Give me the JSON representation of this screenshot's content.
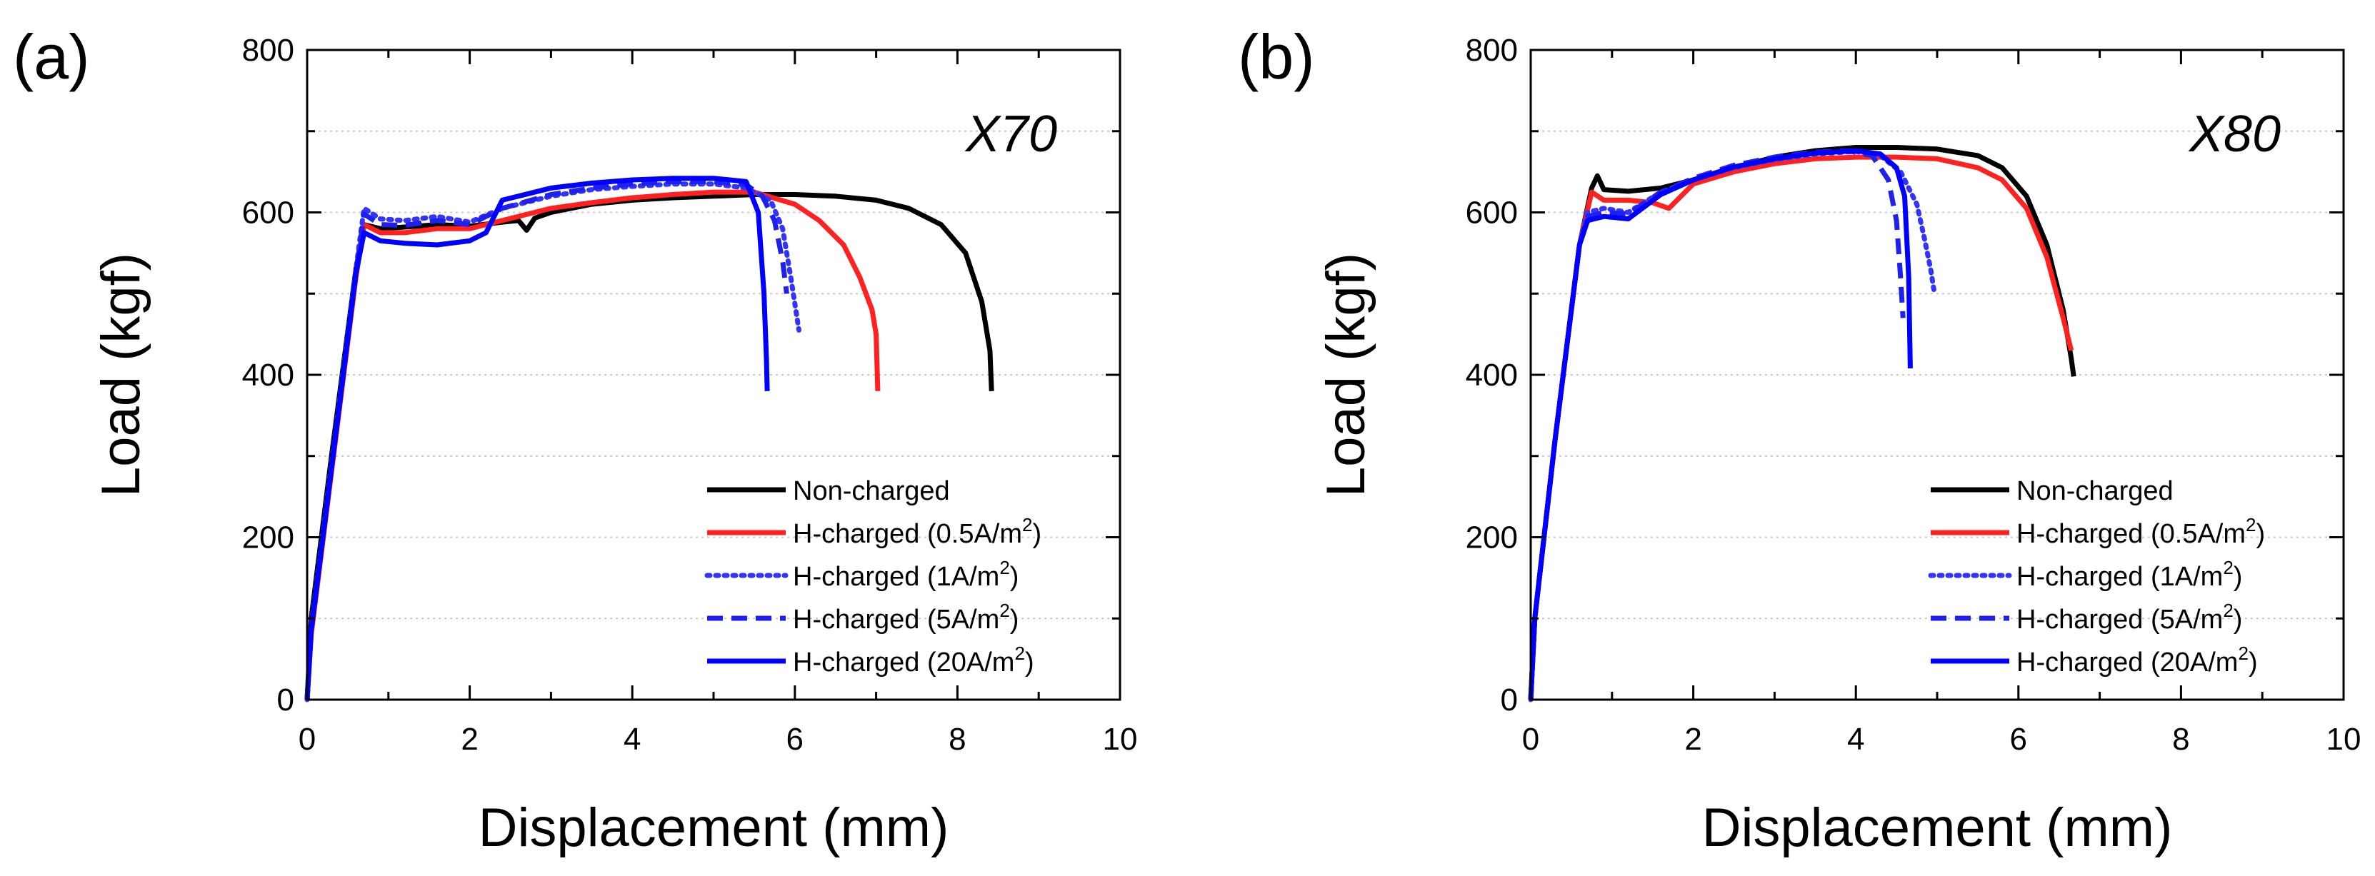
{
  "figure": {
    "background": "#ffffff",
    "axis_color": "#000000",
    "grid_color": "#c8c8c8"
  },
  "chart_data": [
    {
      "type": "line",
      "panel_label": "(a)",
      "title": "X70",
      "xlabel": "Displacement (mm)",
      "ylabel": "Load (kgf)",
      "xlim": [
        0,
        10
      ],
      "ylim": [
        0,
        800
      ],
      "xticks": [
        0,
        2,
        4,
        6,
        8,
        10
      ],
      "yticks": [
        0,
        200,
        400,
        600,
        800
      ],
      "grid": "horizontal dashed",
      "legend_position": "bottom-right",
      "series": [
        {
          "name": "Non-charged",
          "legend_text": "Non-charged",
          "sup": "",
          "legend_tail": "",
          "color": "#000000",
          "dash": "solid",
          "x": [
            0,
            0.05,
            0.3,
            0.6,
            0.7,
            0.9,
            1.2,
            1.6,
            2.0,
            2.4,
            2.6,
            2.7,
            2.8,
            3.0,
            3.5,
            4.0,
            4.5,
            5.0,
            5.5,
            6.0,
            6.5,
            7.0,
            7.4,
            7.8,
            8.1,
            8.3,
            8.4,
            8.42
          ],
          "y": [
            0,
            100,
            300,
            530,
            585,
            580,
            582,
            585,
            583,
            588,
            590,
            578,
            593,
            600,
            610,
            615,
            618,
            620,
            622,
            622,
            620,
            615,
            605,
            585,
            550,
            490,
            430,
            380
          ]
        },
        {
          "name": "H-charged (0.5A/m2)",
          "legend_text": "H-charged (0.5A/m",
          "sup": "2",
          "legend_tail": ")",
          "color": "#ff2020",
          "dash": "solid",
          "x": [
            0,
            0.05,
            0.3,
            0.6,
            0.7,
            0.9,
            1.2,
            1.6,
            2.0,
            2.4,
            3.0,
            3.5,
            4.0,
            4.5,
            5.0,
            5.5,
            6.0,
            6.3,
            6.6,
            6.8,
            6.95,
            7.0,
            7.02
          ],
          "y": [
            0,
            80,
            280,
            520,
            585,
            575,
            575,
            580,
            580,
            590,
            605,
            612,
            618,
            622,
            625,
            625,
            610,
            590,
            560,
            520,
            480,
            450,
            380
          ]
        },
        {
          "name": "H-charged (1A/m2)",
          "legend_text": "H-charged (1A/m",
          "sup": "2",
          "legend_tail": ")",
          "color": "#3333ff",
          "dash": "dotted",
          "x": [
            0,
            0.05,
            0.3,
            0.6,
            0.7,
            0.9,
            1.2,
            1.6,
            2.0,
            2.4,
            3.0,
            3.5,
            4.0,
            4.5,
            5.0,
            5.4,
            5.7,
            5.85,
            5.95,
            6.05
          ],
          "y": [
            0,
            90,
            290,
            530,
            605,
            592,
            590,
            595,
            588,
            605,
            620,
            628,
            632,
            635,
            635,
            630,
            615,
            580,
            520,
            455
          ]
        },
        {
          "name": "H-charged (5A/m2)",
          "legend_text": "H-charged (5A/m",
          "sup": "2",
          "legend_tail": ")",
          "color": "#2020ee",
          "dash": "dashed",
          "x": [
            0,
            0.05,
            0.3,
            0.6,
            0.7,
            0.9,
            1.2,
            1.6,
            2.0,
            2.4,
            3.0,
            3.5,
            4.0,
            4.5,
            5.0,
            5.4,
            5.6,
            5.75,
            5.85,
            5.9
          ],
          "y": [
            0,
            85,
            285,
            525,
            598,
            585,
            584,
            590,
            585,
            605,
            622,
            630,
            635,
            638,
            638,
            634,
            620,
            590,
            540,
            500
          ]
        },
        {
          "name": "H-charged (20A/m2)",
          "legend_text": "H-charged (20A/m",
          "sup": "2",
          "legend_tail": ")",
          "color": "#0000ff",
          "dash": "solid",
          "x": [
            0,
            0.05,
            0.3,
            0.6,
            0.7,
            0.9,
            1.2,
            1.6,
            2.0,
            2.2,
            2.4,
            3.0,
            3.5,
            4.0,
            4.5,
            5.0,
            5.4,
            5.55,
            5.62,
            5.65,
            5.66
          ],
          "y": [
            0,
            85,
            285,
            525,
            575,
            565,
            562,
            560,
            565,
            575,
            615,
            630,
            636,
            640,
            642,
            642,
            638,
            600,
            500,
            420,
            380
          ]
        }
      ]
    },
    {
      "type": "line",
      "panel_label": "(b)",
      "title": "X80",
      "xlabel": "Displacement (mm)",
      "ylabel": "Load (kgf)",
      "xlim": [
        0,
        10
      ],
      "ylim": [
        0,
        800
      ],
      "xticks": [
        0,
        2,
        4,
        6,
        8,
        10
      ],
      "yticks": [
        0,
        200,
        400,
        600,
        800
      ],
      "grid": "horizontal dashed",
      "legend_position": "bottom-right",
      "series": [
        {
          "name": "Non-charged",
          "legend_text": "Non-charged",
          "sup": "",
          "legend_tail": "",
          "color": "#000000",
          "dash": "solid",
          "x": [
            0,
            0.05,
            0.3,
            0.6,
            0.75,
            0.82,
            0.9,
            1.2,
            1.6,
            2.0,
            2.5,
            3.0,
            3.5,
            4.0,
            4.5,
            5.0,
            5.5,
            5.8,
            6.1,
            6.35,
            6.55,
            6.65,
            6.68
          ],
          "y": [
            0,
            100,
            320,
            560,
            630,
            645,
            628,
            626,
            630,
            640,
            655,
            668,
            676,
            680,
            680,
            678,
            670,
            655,
            620,
            560,
            480,
            420,
            398
          ]
        },
        {
          "name": "H-charged (0.5A/m2)",
          "legend_text": "H-charged (0.5A/m",
          "sup": "2",
          "legend_tail": ")",
          "color": "#ff2020",
          "dash": "solid",
          "x": [
            0,
            0.05,
            0.3,
            0.6,
            0.75,
            0.9,
            1.2,
            1.5,
            1.7,
            2.0,
            2.5,
            3.0,
            3.5,
            4.0,
            4.5,
            5.0,
            5.5,
            5.8,
            6.1,
            6.35,
            6.55,
            6.65
          ],
          "y": [
            0,
            100,
            320,
            560,
            625,
            615,
            615,
            612,
            605,
            635,
            650,
            660,
            666,
            668,
            668,
            666,
            655,
            640,
            605,
            545,
            470,
            430
          ]
        },
        {
          "name": "H-charged (1A/m2)",
          "legend_text": "H-charged (1A/m",
          "sup": "2",
          "legend_tail": ")",
          "color": "#3333ff",
          "dash": "dotted",
          "x": [
            0,
            0.05,
            0.3,
            0.6,
            0.7,
            0.9,
            1.2,
            1.6,
            2.0,
            2.5,
            3.0,
            3.5,
            4.0,
            4.3,
            4.55,
            4.75,
            4.85,
            4.92,
            4.96
          ],
          "y": [
            0,
            100,
            320,
            560,
            600,
            605,
            600,
            625,
            640,
            655,
            665,
            672,
            675,
            670,
            650,
            610,
            565,
            530,
            505
          ]
        },
        {
          "name": "H-charged (5A/m2)",
          "legend_text": "H-charged (5A/m",
          "sup": "2",
          "legend_tail": ")",
          "color": "#2020ee",
          "dash": "dashed",
          "x": [
            0,
            0.05,
            0.3,
            0.6,
            0.7,
            0.9,
            1.2,
            1.6,
            2.0,
            2.5,
            3.0,
            3.5,
            3.9,
            4.2,
            4.4,
            4.5,
            4.55,
            4.58
          ],
          "y": [
            0,
            100,
            320,
            560,
            595,
            600,
            598,
            625,
            642,
            658,
            668,
            674,
            676,
            670,
            640,
            590,
            520,
            470
          ]
        },
        {
          "name": "H-charged (20A/m2)",
          "legend_text": "H-charged (20A/m",
          "sup": "2",
          "legend_tail": ")",
          "color": "#0000ff",
          "dash": "solid",
          "x": [
            0,
            0.05,
            0.3,
            0.6,
            0.7,
            0.9,
            1.2,
            1.6,
            2.0,
            2.5,
            3.0,
            3.5,
            4.0,
            4.3,
            4.5,
            4.6,
            4.65,
            4.67
          ],
          "y": [
            0,
            100,
            320,
            560,
            590,
            595,
            592,
            622,
            640,
            656,
            666,
            673,
            676,
            672,
            655,
            620,
            520,
            408
          ]
        }
      ]
    }
  ]
}
